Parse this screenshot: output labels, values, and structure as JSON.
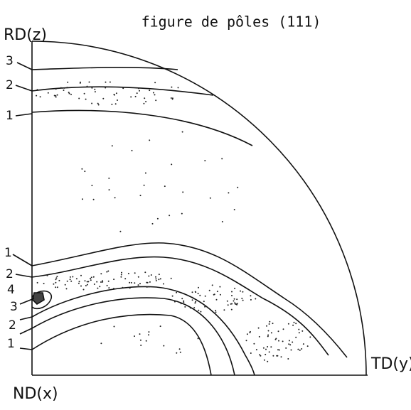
{
  "title": "figure de pôles (111)",
  "axes": {
    "rd": "RD(z)",
    "td": "TD(y)",
    "nd": "ND(x)"
  },
  "contour_labels": {
    "top": [
      "3",
      "2",
      "1"
    ],
    "bottom": [
      "1",
      "2",
      "4",
      "3",
      "2",
      "1"
    ]
  }
}
